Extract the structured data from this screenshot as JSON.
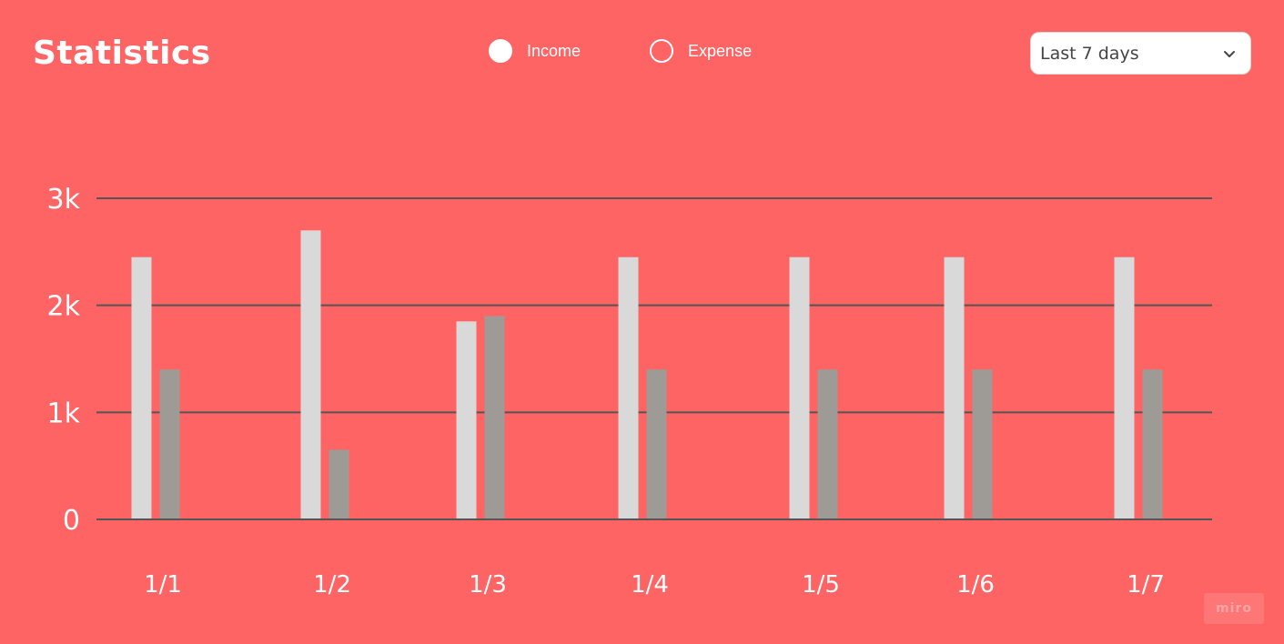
{
  "header": {
    "title": "Statistics"
  },
  "legend": {
    "items": [
      {
        "label": "Income",
        "checked": true
      },
      {
        "label": "Expense",
        "checked": false
      }
    ]
  },
  "filter": {
    "selected": "Last 7 days",
    "icon": "chevron-down-icon"
  },
  "colors": {
    "background": "#ff6464",
    "income": "#d9d9d9",
    "expense": "#9e9a95",
    "grid": "#555555"
  },
  "chart_data": {
    "type": "bar",
    "categories": [
      "1/1",
      "1/2",
      "1/3",
      "1/4",
      "1/5",
      "1/6",
      "1/7"
    ],
    "series": [
      {
        "name": "Income",
        "values": [
          2450,
          2700,
          1850,
          2450,
          2450,
          2450,
          2450
        ]
      },
      {
        "name": "Expense",
        "values": [
          1400,
          650,
          1900,
          1400,
          1400,
          1400,
          1400
        ]
      }
    ],
    "y_ticks": [
      "0",
      "1k",
      "2k",
      "3k"
    ],
    "ylim": [
      0,
      3000
    ],
    "grid": true,
    "legend_position": "top-center"
  },
  "watermark": "miro"
}
